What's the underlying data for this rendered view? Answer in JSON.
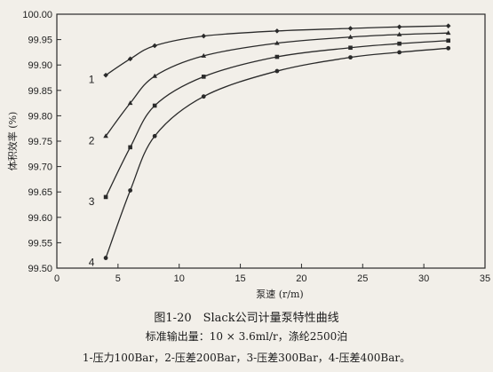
{
  "chart_data": {
    "type": "line",
    "ylabel": "体积效率 (%)",
    "xlabel": "泵速 (r/m)",
    "xlim": [
      0,
      35
    ],
    "ylim": [
      99.5,
      100.0
    ],
    "x_ticks": [
      "0",
      "5",
      "10",
      "15",
      "20",
      "25",
      "30",
      "35"
    ],
    "y_ticks": [
      "99.50",
      "99.55",
      "99.60",
      "99.65",
      "99.70",
      "99.75",
      "99.80",
      "99.85",
      "99.90",
      "99.95",
      "100.00"
    ],
    "grid": false,
    "series": [
      {
        "label": "1",
        "x": [
          4,
          6,
          8,
          12,
          18,
          24,
          28,
          32
        ],
        "y": [
          99.88,
          99.912,
          99.938,
          99.957,
          99.967,
          99.972,
          99.975,
          99.977
        ]
      },
      {
        "label": "2",
        "x": [
          4,
          6,
          8,
          12,
          18,
          24,
          28,
          32
        ],
        "y": [
          99.76,
          99.825,
          99.878,
          99.918,
          99.943,
          99.955,
          99.96,
          99.963
        ]
      },
      {
        "label": "3",
        "x": [
          4,
          6,
          8,
          12,
          18,
          24,
          28,
          32
        ],
        "y": [
          99.64,
          99.738,
          99.82,
          99.877,
          99.916,
          99.934,
          99.942,
          99.948
        ]
      },
      {
        "label": "4",
        "x": [
          4,
          6,
          8,
          12,
          18,
          24,
          28,
          32
        ],
        "y": [
          99.52,
          99.653,
          99.76,
          99.838,
          99.888,
          99.915,
          99.925,
          99.933
        ]
      }
    ]
  },
  "caption": {
    "title": "图1-20　Slack公司计量泵特性曲线",
    "subtitle": "标准输出量：10 × 3.6ml/r，涤纶2500泊",
    "legend": "1-压力100Bar，2-压差200Bar，3-压差300Bar，4-压差400Bar。"
  },
  "colors": {
    "line": "#2a2a2a",
    "background": "#f2efe9"
  }
}
